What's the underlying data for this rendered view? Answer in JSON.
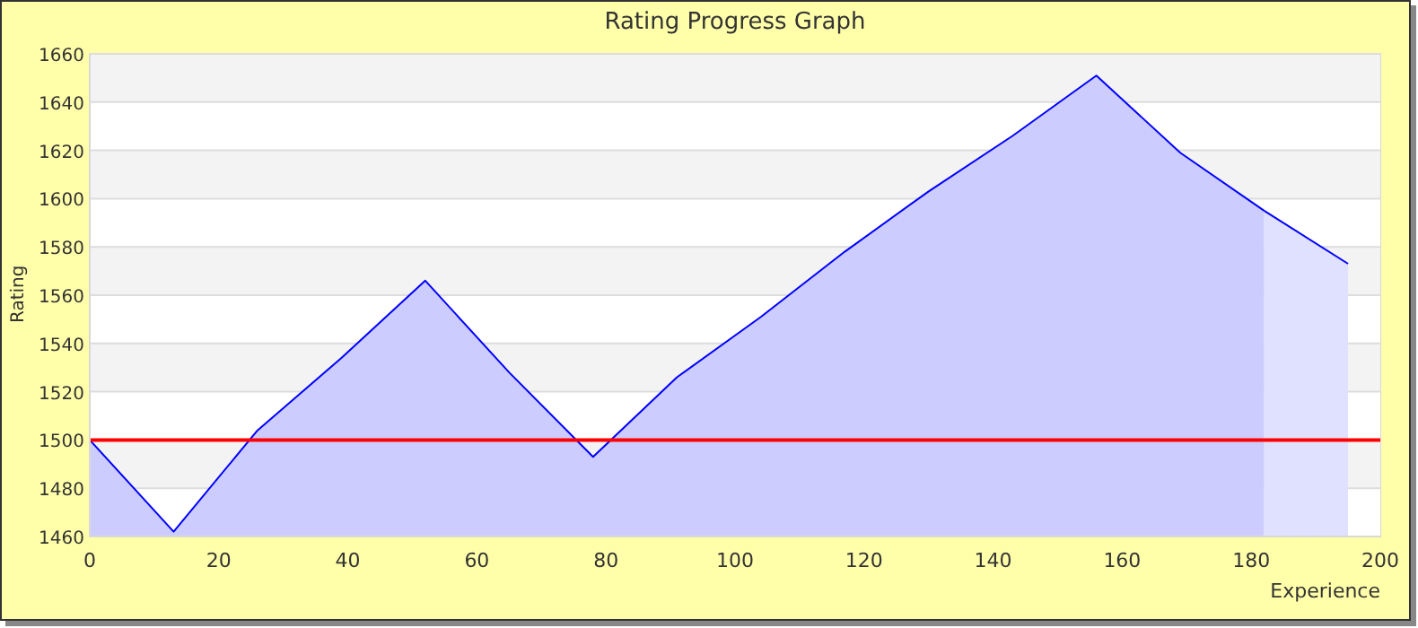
{
  "chart_data": {
    "type": "area",
    "title": "Rating Progress Graph",
    "xlabel": "Experience",
    "ylabel": "Rating",
    "xlim": [
      0,
      200
    ],
    "xticks": [
      0,
      20,
      40,
      60,
      80,
      100,
      120,
      140,
      160,
      180,
      200
    ],
    "ylim": [
      1460,
      1660
    ],
    "yticks": [
      1460,
      1480,
      1500,
      1520,
      1540,
      1560,
      1580,
      1600,
      1620,
      1640,
      1660
    ],
    "grid": "y",
    "series": [
      {
        "color": "#ccccff",
        "x": [
          0,
          13,
          26,
          39,
          52,
          65,
          78,
          91,
          104,
          117,
          130,
          143,
          156,
          169,
          182
        ],
        "values": [
          1500,
          1462,
          1504,
          1534,
          1566,
          1528,
          1493,
          1526,
          1551,
          1578,
          1603,
          1626,
          1651,
          1619,
          1595
        ]
      },
      {
        "color": "#e0e0ff",
        "x": [
          182,
          195
        ],
        "values": [
          1595,
          1573
        ]
      }
    ],
    "ref_lines": [
      {
        "axis": "y",
        "value": 1500,
        "color": "#ff0000"
      }
    ]
  }
}
